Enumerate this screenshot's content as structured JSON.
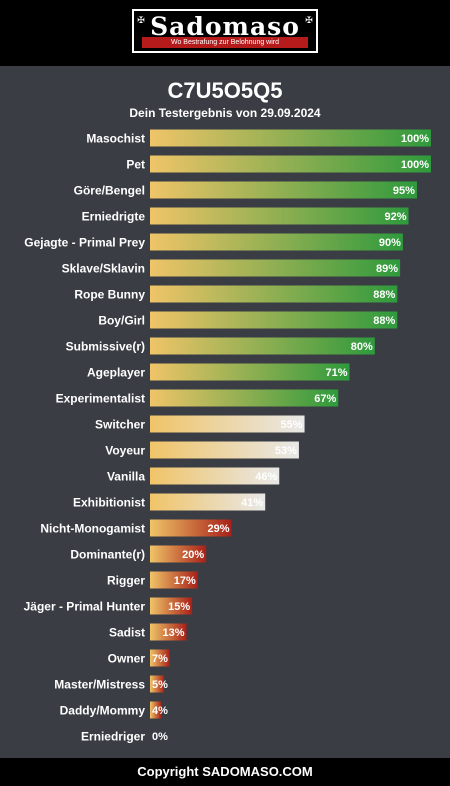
{
  "header": {
    "logo_text": "Sadomaso",
    "logo_tagline": "Wo Bestrafung zur Belohnung wird"
  },
  "result": {
    "title": "C7U5O5Q5",
    "subtitle": "Dein Testergebnis von 29.09.2024"
  },
  "chart_data": {
    "type": "bar",
    "orientation": "horizontal",
    "xlim": [
      0,
      100
    ],
    "unit": "%",
    "categories": [
      "Masochist",
      "Pet",
      "Göre/Bengel",
      "Erniedrigte",
      "Gejagte - Primal Prey",
      "Sklave/Sklavin",
      "Rope Bunny",
      "Boy/Girl",
      "Submissive(r)",
      "Ageplayer",
      "Experimentalist",
      "Switcher",
      "Voyeur",
      "Vanilla",
      "Exhibitionist",
      "Nicht-Monogamist",
      "Dominante(r)",
      "Rigger",
      "Jäger - Primal Hunter",
      "Sadist",
      "Owner",
      "Master/Mistress",
      "Daddy/Mommy",
      "Erniedriger"
    ],
    "values": [
      100,
      100,
      95,
      92,
      90,
      89,
      88,
      88,
      80,
      71,
      67,
      55,
      53,
      46,
      41,
      29,
      20,
      17,
      15,
      13,
      7,
      5,
      4,
      0
    ],
    "labels": [
      "100%",
      "100%",
      "95%",
      "92%",
      "90%",
      "89%",
      "88%",
      "88%",
      "80%",
      "71%",
      "67%",
      "55%",
      "53%",
      "46%",
      "41%",
      "29%",
      "20%",
      "17%",
      "15%",
      "13%",
      "7%",
      "5%",
      "4%",
      "0%"
    ],
    "colors": {
      "bar_start": "#f0c468",
      "high_end": "#2e9a3c",
      "mid_end": "#e8e8e8",
      "low_end": "#a82018"
    }
  },
  "footer": {
    "copyright": "Copyright SADOMASO.COM"
  }
}
